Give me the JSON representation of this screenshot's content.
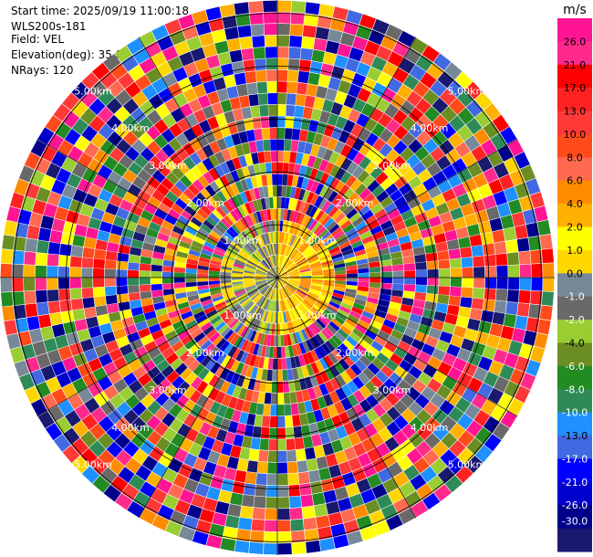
{
  "info": {
    "start_time": "Start time: 2025/09/19 11:00:18",
    "instrument": "WLS200s-181",
    "field": "Field: VEL",
    "elevation": "Elevation(deg): 35.00",
    "nrays": "NRays: 120"
  },
  "chart_data": {
    "type": "heatmap",
    "projection": "polar",
    "field": "VEL",
    "elevation_deg": 35.0,
    "n_rays": 120,
    "n_range_gates": 24,
    "range_rings_km": [
      1,
      2,
      3,
      4,
      5
    ],
    "range_ring_labels": [
      "1.00km",
      "2.00km",
      "3.00km",
      "4.00km",
      "5.00km"
    ],
    "max_range_km": 5.25,
    "colorbar": {
      "unit": "m/s",
      "ticks": [
        "26.0",
        "21.0",
        "17.0",
        "13.0",
        "10.0",
        "8.0",
        "6.0",
        "4.0",
        "2.0",
        "1.0",
        "0.0",
        "-1.0",
        "-2.0",
        "-4.0",
        "-6.0",
        "-8.0",
        "-10.0",
        "-13.0",
        "-17.0",
        "-21.0",
        "-26.0",
        "-30.0"
      ],
      "colors": [
        "#ff1493",
        "#ff2a8c",
        "#ff0000",
        "#ff2222",
        "#ff3838",
        "#ff4a1a",
        "#ff6a50",
        "#ff8c00",
        "#ffb000",
        "#ffff00",
        "#ffd700",
        "#778899",
        "#696969",
        "#9acd32",
        "#6b8e23",
        "#228b22",
        "#2e8b57",
        "#1e90ff",
        "#4169e1",
        "#0000ff",
        "#0000cd",
        "#00008b",
        "#191970"
      ]
    },
    "pattern": {
      "near_range_km": 1.0,
      "near_range_values_west": [
        0.0,
        -1.0,
        -2.0,
        -4.0
      ],
      "near_range_values_east": [
        0.0,
        1.0,
        2.0,
        4.0
      ],
      "far_range_description": "noise / random velocities beyond ~1.5 km"
    }
  }
}
